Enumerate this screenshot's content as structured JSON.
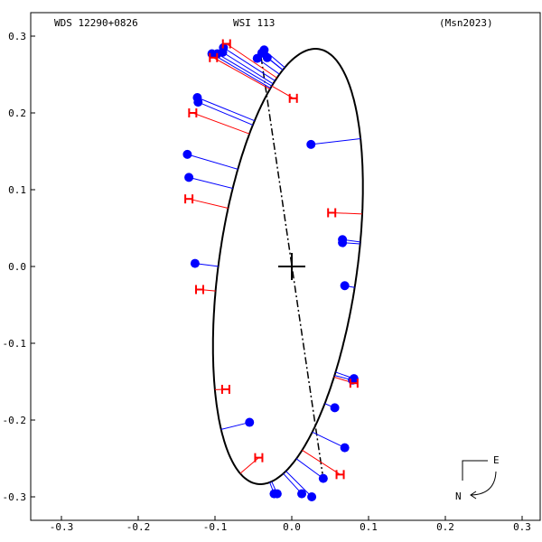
{
  "header": {
    "left": "WDS 12290+0826",
    "center": "WSI 113",
    "right": "(Msn2023)"
  },
  "orientation": {
    "east": "E",
    "north": "N"
  },
  "colors": {
    "orbit": "#000000",
    "speckle": "#0000ff",
    "micrometer": "#ff0000",
    "line_of_nodes": "#000000"
  },
  "chart_data": {
    "type": "scatter",
    "title": "",
    "xlabel": "",
    "ylabel": "",
    "xlim": [
      0.3,
      -0.3
    ],
    "ylim": [
      -0.3,
      0.3
    ],
    "grid": false,
    "x_ticks": [
      {
        "value": 0.3,
        "label": "-0.3"
      },
      {
        "value": 0.2,
        "label": "-0.2"
      },
      {
        "value": 0.1,
        "label": "-0.1"
      },
      {
        "value": 0.0,
        "label": "0.0"
      },
      {
        "value": -0.1,
        "label": "0.1"
      },
      {
        "value": -0.2,
        "label": "0.2"
      },
      {
        "value": -0.3,
        "label": "0.3"
      }
    ],
    "y_ticks": [
      {
        "value": 0.3,
        "label": "0.3"
      },
      {
        "value": 0.2,
        "label": "0.2"
      },
      {
        "value": 0.1,
        "label": "0.1"
      },
      {
        "value": 0.0,
        "label": "0.0"
      },
      {
        "value": -0.1,
        "label": "-0.1"
      },
      {
        "value": -0.2,
        "label": "-0.2"
      },
      {
        "value": -0.3,
        "label": "-0.3"
      }
    ],
    "orbit_ellipse": {
      "center": [
        0.005,
        0.0
      ],
      "semi_axis_major": 0.286,
      "semi_axis_minor": 0.09,
      "tilt_deg_from_vertical": 8
    },
    "line_of_nodes": {
      "start": [
        0.04,
        0.273
      ],
      "end": [
        -0.04,
        -0.27
      ]
    },
    "primary": [
      0.0,
      0.0
    ],
    "series": [
      {
        "marker": "filled-circle",
        "points": [
          [
            0.104,
            0.277
          ],
          [
            0.097,
            0.277
          ],
          [
            0.09,
            0.279
          ],
          [
            0.089,
            0.285
          ],
          [
            0.036,
            0.282
          ],
          [
            0.039,
            0.278
          ],
          [
            0.032,
            0.272
          ],
          [
            0.045,
            0.271
          ],
          [
            0.123,
            0.22
          ],
          [
            0.122,
            0.214
          ],
          [
            -0.025,
            0.159
          ],
          [
            0.136,
            0.146
          ],
          [
            0.134,
            0.116
          ],
          [
            -0.066,
            0.035
          ],
          [
            -0.066,
            0.031
          ],
          [
            0.126,
            0.004
          ],
          [
            -0.069,
            -0.025
          ],
          [
            -0.081,
            -0.146
          ],
          [
            -0.079,
            -0.148
          ],
          [
            -0.056,
            -0.184
          ],
          [
            0.055,
            -0.203
          ],
          [
            -0.069,
            -0.236
          ],
          [
            -0.041,
            -0.276
          ],
          [
            0.023,
            -0.296
          ],
          [
            0.019,
            -0.296
          ],
          [
            -0.013,
            -0.296
          ],
          [
            -0.026,
            -0.3
          ]
        ]
      },
      {
        "marker": "H",
        "points": [
          [
            0.085,
            0.29
          ],
          [
            0.102,
            0.272
          ],
          [
            -0.002,
            0.219
          ],
          [
            0.129,
            0.2
          ],
          [
            0.134,
            0.088
          ],
          [
            -0.052,
            0.07
          ],
          [
            0.12,
            -0.03
          ],
          [
            0.086,
            -0.16
          ],
          [
            -0.081,
            -0.152
          ],
          [
            0.043,
            -0.249
          ],
          [
            -0.063,
            -0.271
          ]
        ]
      }
    ]
  }
}
